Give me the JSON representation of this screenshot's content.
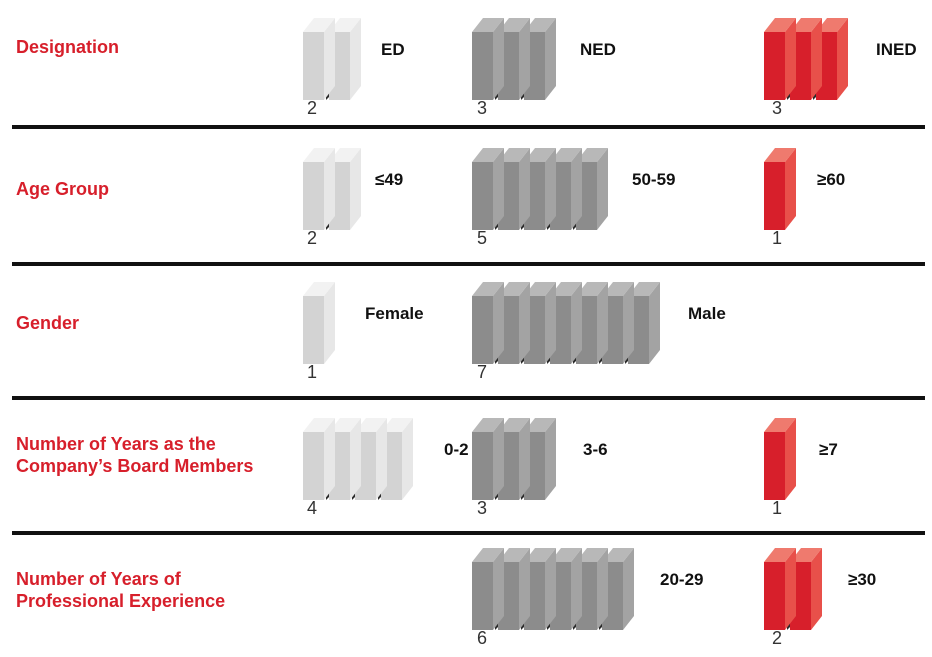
{
  "colors": {
    "light": {
      "front": "#d3d3d3",
      "side": "#e7e7e7",
      "top": "#f2f2f2",
      "spine": "#2b2b2b"
    },
    "mid": {
      "front": "#8c8c8c",
      "side": "#a3a3a3",
      "top": "#b8b8b8",
      "spine": "#2b2b2b"
    },
    "red": {
      "front": "#d71f2b",
      "side": "#e8504a",
      "top": "#ef7a6e",
      "spine": "#2b2b2b"
    },
    "label": "#d71f2b",
    "divider": "#111111"
  },
  "chart_data": {
    "type": "pictograph",
    "unit": "board member",
    "rows": [
      {
        "label": "Designation",
        "groups": [
          {
            "category": "ED",
            "count": "2",
            "value": 2,
            "color": "light"
          },
          {
            "category": "NED",
            "count": "3",
            "value": 3,
            "color": "mid"
          },
          {
            "category": "INED",
            "count": "3",
            "value": 3,
            "color": "red"
          }
        ]
      },
      {
        "label": "Age Group",
        "groups": [
          {
            "category": "≤49",
            "count": "2",
            "value": 2,
            "color": "light"
          },
          {
            "category": "50-59",
            "count": "5",
            "value": 5,
            "color": "mid"
          },
          {
            "category": "≥60",
            "count": "1",
            "value": 1,
            "color": "red"
          }
        ]
      },
      {
        "label": "Gender",
        "groups": [
          {
            "category": "Female",
            "count": "1",
            "value": 1,
            "color": "light"
          },
          {
            "category": "Male",
            "count": "7",
            "value": 7,
            "color": "mid"
          }
        ]
      },
      {
        "label": "Number of Years as the\nCompany’s Board Members",
        "groups": [
          {
            "category": "0-2",
            "count": "4",
            "value": 4,
            "color": "light"
          },
          {
            "category": "3-6",
            "count": "3",
            "value": 3,
            "color": "mid"
          },
          {
            "category": "≥7",
            "count": "1",
            "value": 1,
            "color": "red"
          }
        ]
      },
      {
        "label": "Number of Years of\nProfessional Experience",
        "groups": [
          {
            "category": "20-29",
            "count": "6",
            "value": 6,
            "color": "mid"
          },
          {
            "category": "≥30",
            "count": "2",
            "value": 2,
            "color": "red"
          }
        ]
      }
    ]
  }
}
